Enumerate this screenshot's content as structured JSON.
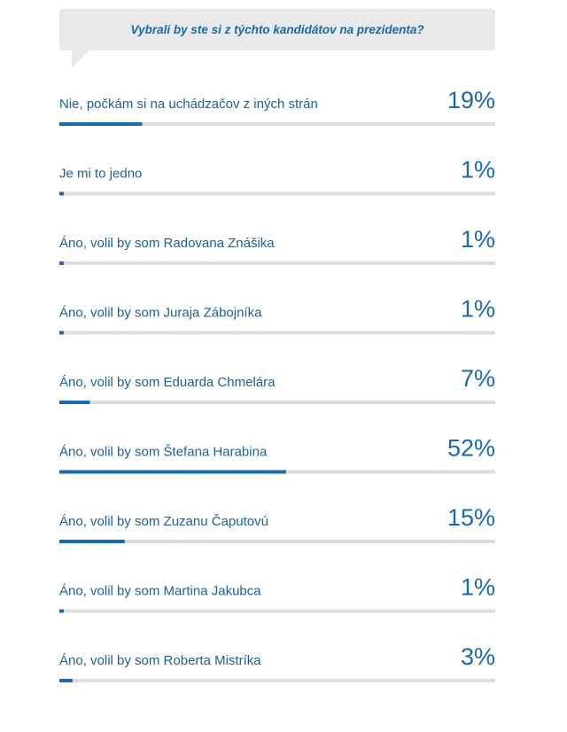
{
  "poll": {
    "question": "Vybrali by ste si z týchto kandidátov na prezidenta?"
  },
  "colors": {
    "accent": "#1769b0",
    "track": "#dcdcdc",
    "bubble": "#e9e9e9",
    "label": "#1d5f98"
  },
  "chart_data": {
    "type": "bar",
    "orientation": "horizontal",
    "title": "Vybrali by ste si z týchto kandidátov na prezidenta?",
    "unit": "%",
    "xlim": [
      0,
      100
    ],
    "grid": false,
    "categories": [
      "Nie, počkám si na uchádzačov z iných strán",
      "Je mi to jedno",
      "Áno, volil by som Radovana Znášika",
      "Áno, volil by som Juraja Zábojníka",
      "Áno, volil by som Eduarda Chmelára",
      "Áno, volil by som Štefana Harabina",
      "Áno, volil by som Zuzanu Čaputovú",
      "Áno, volil by som Martina Jakubca",
      "Áno, volil by som Roberta Mistríka"
    ],
    "values": [
      19,
      1,
      1,
      1,
      7,
      52,
      15,
      1,
      3
    ],
    "value_labels": [
      "19%",
      "1%",
      "1%",
      "1%",
      "7%",
      "52%",
      "15%",
      "1%",
      "3%"
    ]
  }
}
